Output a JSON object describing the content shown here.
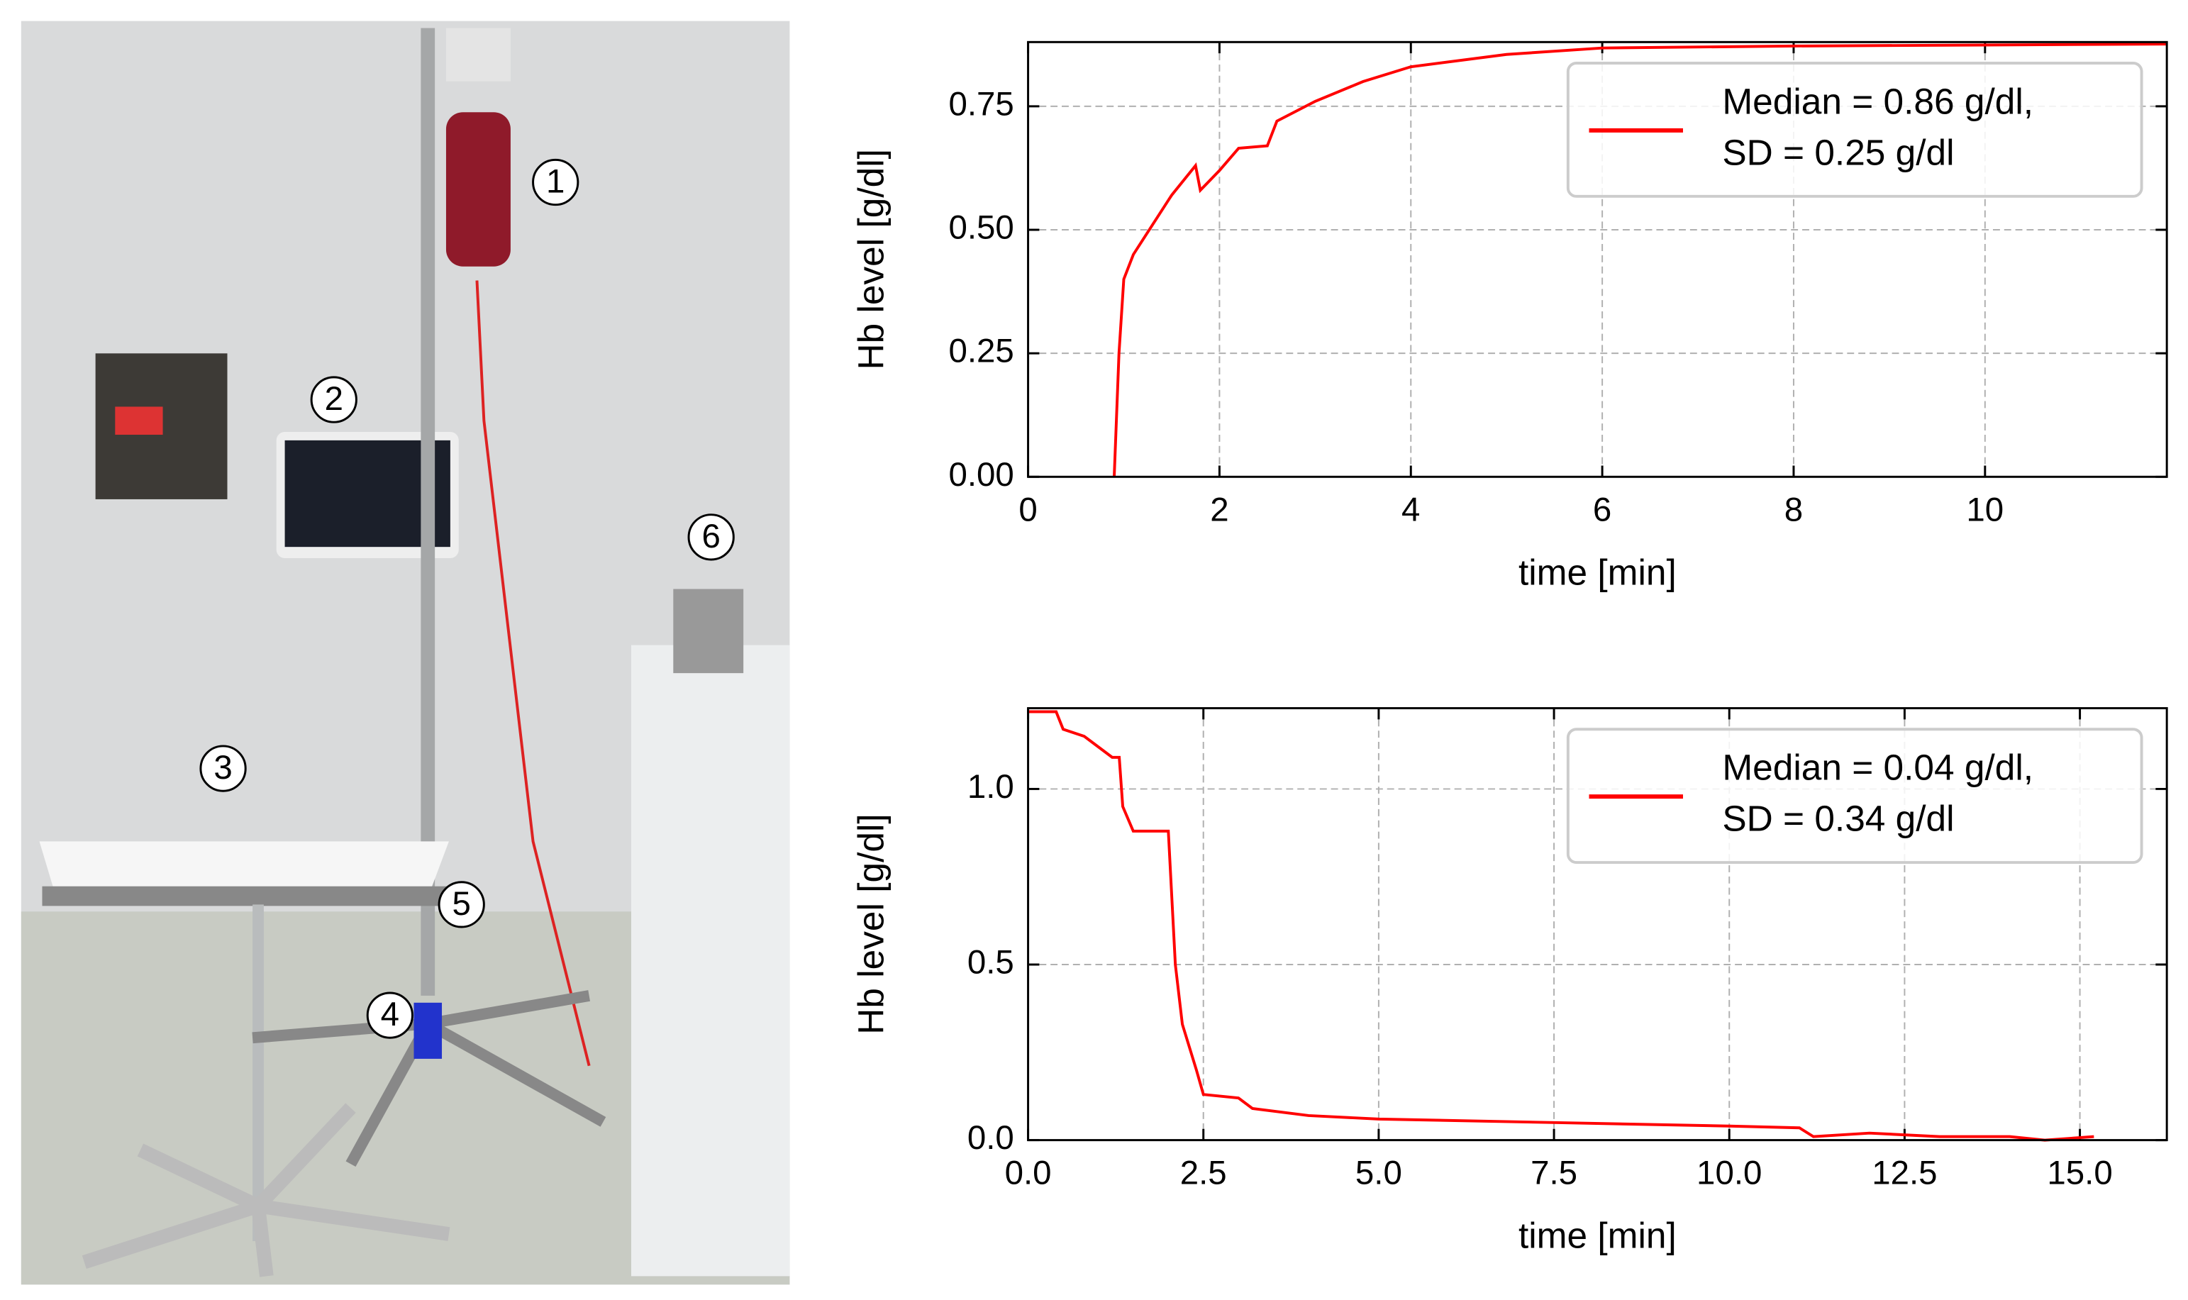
{
  "photo": {
    "labels": [
      "1",
      "2",
      "3",
      "4",
      "5",
      "6"
    ]
  },
  "chart_data": [
    {
      "type": "line",
      "xlabel": "time [min]",
      "ylabel": "Hb level [g/dl]",
      "xlim": [
        0,
        11.9
      ],
      "ylim": [
        0,
        0.88
      ],
      "xticks": [
        0,
        2,
        4,
        6,
        8,
        10
      ],
      "yticks": [
        {
          "value": 0,
          "label": "0.00"
        },
        {
          "value": 0.25,
          "label": "0.25"
        },
        {
          "value": 0.5,
          "label": "0.50"
        },
        {
          "value": 0.75,
          "label": "0.75"
        }
      ],
      "grid": true,
      "legend": "upper right",
      "x": [
        0.9,
        0.95,
        1.0,
        1.1,
        1.2,
        1.5,
        1.75,
        1.8,
        2.0,
        2.2,
        2.5,
        2.6,
        3.0,
        3.5,
        4.0,
        5.0,
        6.0,
        8.0,
        11.9
      ],
      "series": [
        {
          "name": "Median = 0.86 g/dl,\nSD = 0.25 g/dl",
          "color": "#ff0000",
          "values": [
            0.0,
            0.25,
            0.4,
            0.45,
            0.48,
            0.57,
            0.63,
            0.58,
            0.62,
            0.665,
            0.67,
            0.72,
            0.76,
            0.8,
            0.83,
            0.855,
            0.868,
            0.872,
            0.876
          ]
        }
      ]
    },
    {
      "type": "line",
      "xlabel": "time [min]",
      "ylabel": "Hb level [g/dl]",
      "xlim": [
        0,
        16.24
      ],
      "ylim": [
        0,
        1.23
      ],
      "xticks": [
        {
          "value": 0,
          "label": "0.0"
        },
        {
          "value": 2.5,
          "label": "2.5"
        },
        {
          "value": 5,
          "label": "5.0"
        },
        {
          "value": 7.5,
          "label": "7.5"
        },
        {
          "value": 10,
          "label": "10.0"
        },
        {
          "value": 12.5,
          "label": "12.5"
        },
        {
          "value": 15,
          "label": "15.0"
        }
      ],
      "yticks": [
        {
          "value": 0,
          "label": "0.0"
        },
        {
          "value": 0.5,
          "label": "0.5"
        },
        {
          "value": 1,
          "label": "1.0"
        }
      ],
      "grid": true,
      "legend": "upper right",
      "x": [
        0,
        0.4,
        0.5,
        0.8,
        1.0,
        1.2,
        1.3,
        1.35,
        1.5,
        2.0,
        2.1,
        2.2,
        2.4,
        2.5,
        3.0,
        3.2,
        4.0,
        5.0,
        7.5,
        10.0,
        11.0,
        11.2,
        12.0,
        13.0,
        14.0,
        14.5,
        15.2
      ],
      "series": [
        {
          "name": "Median = 0.04 g/dl,\nSD = 0.34 g/dl",
          "color": "#ff0000",
          "values": [
            1.22,
            1.22,
            1.17,
            1.15,
            1.12,
            1.09,
            1.09,
            0.95,
            0.88,
            0.88,
            0.5,
            0.33,
            0.2,
            0.13,
            0.12,
            0.09,
            0.07,
            0.06,
            0.05,
            0.04,
            0.035,
            0.01,
            0.02,
            0.01,
            0.01,
            0.0,
            0.01
          ]
        }
      ]
    }
  ]
}
